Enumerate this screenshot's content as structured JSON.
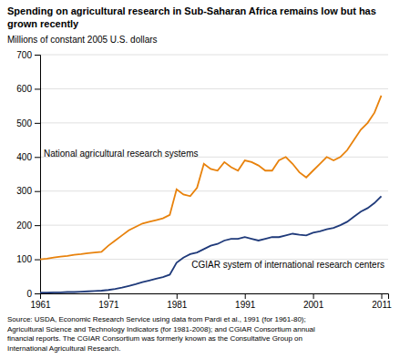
{
  "chart_data": {
    "type": "line",
    "title": "Spending on agricultural research in Sub-Saharan Africa remains low but has grown recently",
    "y_label": "Millions of constant 2005 U.S. dollars",
    "source": "Source: USDA, Economic Research Service using data from Pardi et al., 1991 (for 1961-80);\nAgricultural Science and Technology Indicators (for 1981-2008); and CGIAR Consortium annual\nfinancial reports. The CGIAR Consortium was formerly known as the Consultative Group on\nInternational Agricultural Research.",
    "x": [
      1961,
      1962,
      1963,
      1964,
      1965,
      1966,
      1967,
      1968,
      1969,
      1970,
      1971,
      1972,
      1973,
      1974,
      1975,
      1976,
      1977,
      1978,
      1979,
      1980,
      1981,
      1982,
      1983,
      1984,
      1985,
      1986,
      1987,
      1988,
      1989,
      1990,
      1991,
      1992,
      1993,
      1994,
      1995,
      1996,
      1997,
      1998,
      1999,
      2000,
      2001,
      2002,
      2003,
      2004,
      2005,
      2006,
      2007,
      2008,
      2009,
      2010,
      2011
    ],
    "series": [
      {
        "name": "National agricultural research systems",
        "color": "#E8820C",
        "values": [
          100,
          102,
          105,
          108,
          110,
          113,
          115,
          118,
          120,
          122,
          140,
          155,
          170,
          185,
          195,
          205,
          210,
          215,
          220,
          230,
          305,
          290,
          285,
          310,
          380,
          365,
          360,
          385,
          370,
          360,
          390,
          385,
          375,
          360,
          360,
          390,
          400,
          380,
          355,
          340,
          360,
          380,
          400,
          390,
          400,
          420,
          450,
          480,
          500,
          530,
          580
        ]
      },
      {
        "name": "CGIAR system of international research centers",
        "color": "#1F3A7A",
        "values": [
          2,
          2,
          3,
          3,
          4,
          4,
          5,
          6,
          7,
          8,
          10,
          13,
          17,
          22,
          27,
          33,
          38,
          43,
          48,
          55,
          90,
          105,
          115,
          120,
          130,
          140,
          145,
          155,
          160,
          160,
          165,
          160,
          155,
          160,
          165,
          165,
          170,
          175,
          172,
          170,
          178,
          182,
          188,
          192,
          200,
          210,
          225,
          240,
          250,
          265,
          285
        ]
      }
    ],
    "xlim": [
      1961,
      2012
    ],
    "ylim": [
      0,
      700
    ],
    "xticks": [
      1961,
      1971,
      1981,
      1991,
      2001,
      2011
    ],
    "yticks": [
      0,
      100,
      200,
      300,
      400,
      500,
      600,
      700
    ],
    "grid": true
  }
}
